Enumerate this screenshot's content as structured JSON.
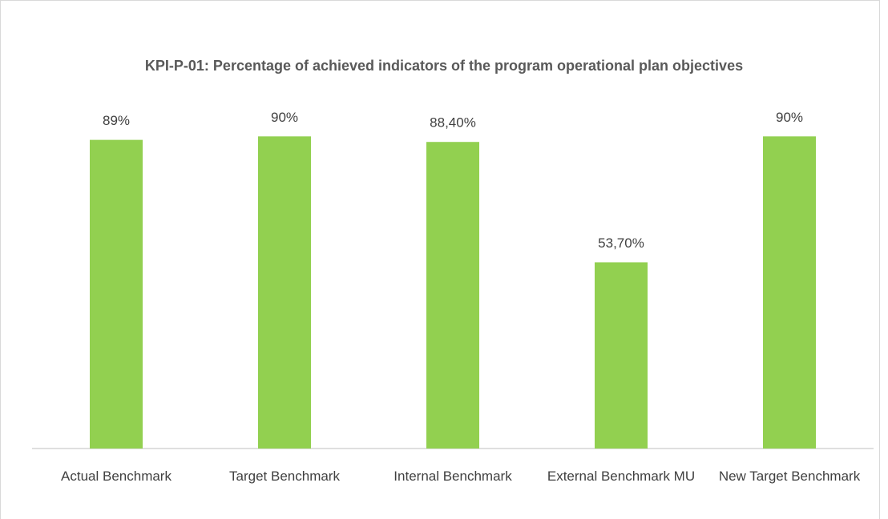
{
  "chart_data": {
    "type": "bar",
    "title": "KPI-P-01: Percentage of achieved indicators of the program operational plan objectives",
    "categories": [
      "Actual Benchmark",
      "Target Benchmark",
      "Internal Benchmark",
      "External Benchmark MU",
      "New Target Benchmark"
    ],
    "values": [
      89,
      90,
      88.4,
      53.7,
      90
    ],
    "value_labels": [
      "89%",
      "90%",
      "88,40%",
      "53,70%",
      "90%"
    ],
    "color": "#92d050",
    "ylim": [
      0,
      100
    ]
  }
}
